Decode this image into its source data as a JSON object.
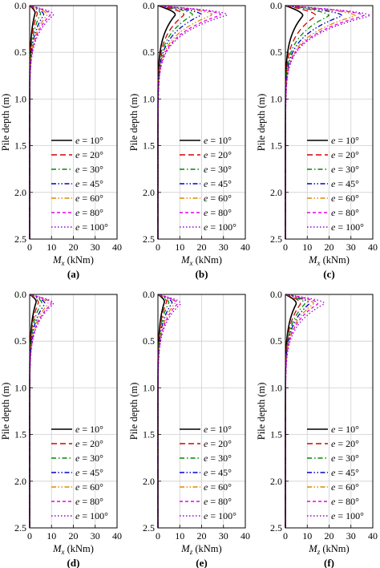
{
  "figure": {
    "ylabel": "Pile depth (m)",
    "legend_prefix": "e = ",
    "legend_position": "lower-right"
  },
  "styles": [
    {
      "name": "e = 10°",
      "color": "#000000",
      "dash": "solid"
    },
    {
      "name": "e = 20°",
      "color": "#d40000",
      "dash": "long-dash"
    },
    {
      "name": "e = 30°",
      "color": "#008a00",
      "dash": "dash-dot"
    },
    {
      "name": "e = 45°",
      "color": "#0000cc",
      "dash": "dash-dot-dot"
    },
    {
      "name": "e = 60°",
      "color": "#e08a00",
      "dash": "dash-dot-dot"
    },
    {
      "name": "e = 80°",
      "color": "#e800e8",
      "dash": "dash"
    },
    {
      "name": "e = 100°",
      "color": "#9400d3",
      "dash": "dot"
    }
  ],
  "chart_data": [
    {
      "panel": "(a)",
      "type": "line",
      "xlabel_main": "M",
      "xlabel_sub": "x",
      "xlabel_unit": " (kNm)",
      "xlim": [
        0,
        40
      ],
      "ylim": [
        0,
        2.5
      ],
      "y_inverted": true,
      "xticks": [
        0,
        10,
        20,
        30,
        40
      ],
      "yticks": [
        "0.0",
        "0.5",
        "1.0",
        "1.5",
        "2.0",
        "2.5"
      ],
      "grid": true,
      "legend": [
        "10°",
        "20°",
        "30°",
        "45°",
        "60°",
        "80°",
        "100°"
      ],
      "series": [
        {
          "name": "e = 10°",
          "peak": 2.5,
          "depth": 0.08
        },
        {
          "name": "e = 20°",
          "peak": 3.5,
          "depth": 0.09
        },
        {
          "name": "e = 30°",
          "peak": 5,
          "depth": 0.09
        },
        {
          "name": "e = 45°",
          "peak": 6.5,
          "depth": 0.1
        },
        {
          "name": "e = 60°",
          "peak": 8,
          "depth": 0.1
        },
        {
          "name": "e = 80°",
          "peak": 9.5,
          "depth": 0.1
        },
        {
          "name": "e = 100°",
          "peak": 11,
          "depth": 0.1
        }
      ]
    },
    {
      "panel": "(b)",
      "type": "line",
      "xlabel_main": "M",
      "xlabel_sub": "x",
      "xlabel_unit": " (kNm)",
      "xlim": [
        0,
        40
      ],
      "ylim": [
        0,
        2.5
      ],
      "y_inverted": true,
      "xticks": [
        0,
        10,
        20,
        30,
        40
      ],
      "yticks": [
        "0.0",
        "0.5",
        "1.0",
        "1.5",
        "2.0",
        "2.5"
      ],
      "grid": true,
      "legend": [
        "10°",
        "20°",
        "30°",
        "45°",
        "60°",
        "80°",
        "100°"
      ],
      "series": [
        {
          "name": "e = 10°",
          "peak": 8,
          "depth": 0.1
        },
        {
          "name": "e = 20°",
          "peak": 12,
          "depth": 0.1
        },
        {
          "name": "e = 30°",
          "peak": 16,
          "depth": 0.1
        },
        {
          "name": "e = 45°",
          "peak": 20,
          "depth": 0.1
        },
        {
          "name": "e = 60°",
          "peak": 25,
          "depth": 0.1
        },
        {
          "name": "e = 80°",
          "peak": 29,
          "depth": 0.1
        },
        {
          "name": "e = 100°",
          "peak": 32,
          "depth": 0.1
        }
      ]
    },
    {
      "panel": "(c)",
      "type": "line",
      "xlabel_main": "M",
      "xlabel_sub": "x",
      "xlabel_unit": " (kNm)",
      "xlim": [
        0,
        40
      ],
      "ylim": [
        0,
        2.5
      ],
      "y_inverted": true,
      "xticks": [
        0,
        10,
        20,
        30,
        40
      ],
      "yticks": [
        "0.0",
        "0.5",
        "1.0",
        "1.5",
        "2.0",
        "2.5"
      ],
      "grid": true,
      "legend": [
        "10°",
        "20°",
        "30°",
        "45°",
        "60°",
        "80°",
        "100°"
      ],
      "series": [
        {
          "name": "e = 10°",
          "peak": 8,
          "depth": 0.11
        },
        {
          "name": "e = 20°",
          "peak": 14,
          "depth": 0.11
        },
        {
          "name": "e = 30°",
          "peak": 20,
          "depth": 0.11
        },
        {
          "name": "e = 45°",
          "peak": 26,
          "depth": 0.11
        },
        {
          "name": "e = 60°",
          "peak": 32,
          "depth": 0.11
        },
        {
          "name": "e = 80°",
          "peak": 36,
          "depth": 0.11
        },
        {
          "name": "e = 100°",
          "peak": 39,
          "depth": 0.11
        }
      ]
    },
    {
      "panel": "(d)",
      "type": "line",
      "xlabel_main": "M",
      "xlabel_sub": "x",
      "xlabel_unit": " (kNm)",
      "xlim": [
        0,
        40
      ],
      "ylim": [
        0,
        2.5
      ],
      "y_inverted": true,
      "xticks": [
        0,
        10,
        20,
        30,
        40
      ],
      "yticks": [
        "0.0",
        "0.5",
        "1.0",
        "1.5",
        "2.0",
        "2.5"
      ],
      "grid": true,
      "legend": [
        "10°",
        "20°",
        "30°",
        "45°",
        "60°",
        "80°",
        "100°"
      ],
      "series": [
        {
          "name": "e = 10°",
          "peak": 3,
          "depth": 0.08
        },
        {
          "name": "e = 20°",
          "peak": 4,
          "depth": 0.09
        },
        {
          "name": "e = 30°",
          "peak": 5.5,
          "depth": 0.09
        },
        {
          "name": "e = 45°",
          "peak": 7,
          "depth": 0.1
        },
        {
          "name": "e = 60°",
          "peak": 8.5,
          "depth": 0.1
        },
        {
          "name": "e = 80°",
          "peak": 10,
          "depth": 0.1
        },
        {
          "name": "e = 100°",
          "peak": 11,
          "depth": 0.1
        }
      ]
    },
    {
      "panel": "(e)",
      "type": "line",
      "xlabel_main": "M",
      "xlabel_sub": "z",
      "xlabel_unit": " (kNm)",
      "xlim": [
        0,
        40
      ],
      "ylim": [
        0,
        2.5
      ],
      "y_inverted": true,
      "xticks": [
        0,
        10,
        20,
        30,
        40
      ],
      "yticks": [
        "0.0",
        "0.5",
        "1.0",
        "1.5",
        "2.0",
        "2.5"
      ],
      "grid": true,
      "legend": [
        "10°",
        "20°",
        "30°",
        "45°",
        "60°",
        "80°",
        "100°"
      ],
      "series": [
        {
          "name": "e = 10°",
          "peak": 3,
          "depth": 0.08
        },
        {
          "name": "e = 20°",
          "peak": 4,
          "depth": 0.08
        },
        {
          "name": "e = 30°",
          "peak": 5,
          "depth": 0.09
        },
        {
          "name": "e = 45°",
          "peak": 6.5,
          "depth": 0.09
        },
        {
          "name": "e = 60°",
          "peak": 8,
          "depth": 0.09
        },
        {
          "name": "e = 80°",
          "peak": 9,
          "depth": 0.1
        },
        {
          "name": "e = 100°",
          "peak": 10.5,
          "depth": 0.1
        }
      ]
    },
    {
      "panel": "(f)",
      "type": "line",
      "xlabel_main": "M",
      "xlabel_sub": "z",
      "xlabel_unit": " (kNm)",
      "xlim": [
        0,
        40
      ],
      "ylim": [
        0,
        2.5
      ],
      "y_inverted": true,
      "xticks": [
        0,
        10,
        20,
        30,
        40
      ],
      "yticks": [
        "0.0",
        "0.5",
        "1.0",
        "1.5",
        "2.0",
        "2.5"
      ],
      "grid": true,
      "legend": [
        "10°",
        "20°",
        "30°",
        "45°",
        "60°",
        "80°",
        "100°"
      ],
      "series": [
        {
          "name": "e = 10°",
          "peak": 5,
          "depth": 0.1
        },
        {
          "name": "e = 20°",
          "peak": 7,
          "depth": 0.1
        },
        {
          "name": "e = 30°",
          "peak": 9,
          "depth": 0.1
        },
        {
          "name": "e = 45°",
          "peak": 11,
          "depth": 0.1
        },
        {
          "name": "e = 60°",
          "peak": 13,
          "depth": 0.1
        },
        {
          "name": "e = 80°",
          "peak": 15,
          "depth": 0.1
        },
        {
          "name": "e = 100°",
          "peak": 18,
          "depth": 0.1
        }
      ]
    }
  ]
}
